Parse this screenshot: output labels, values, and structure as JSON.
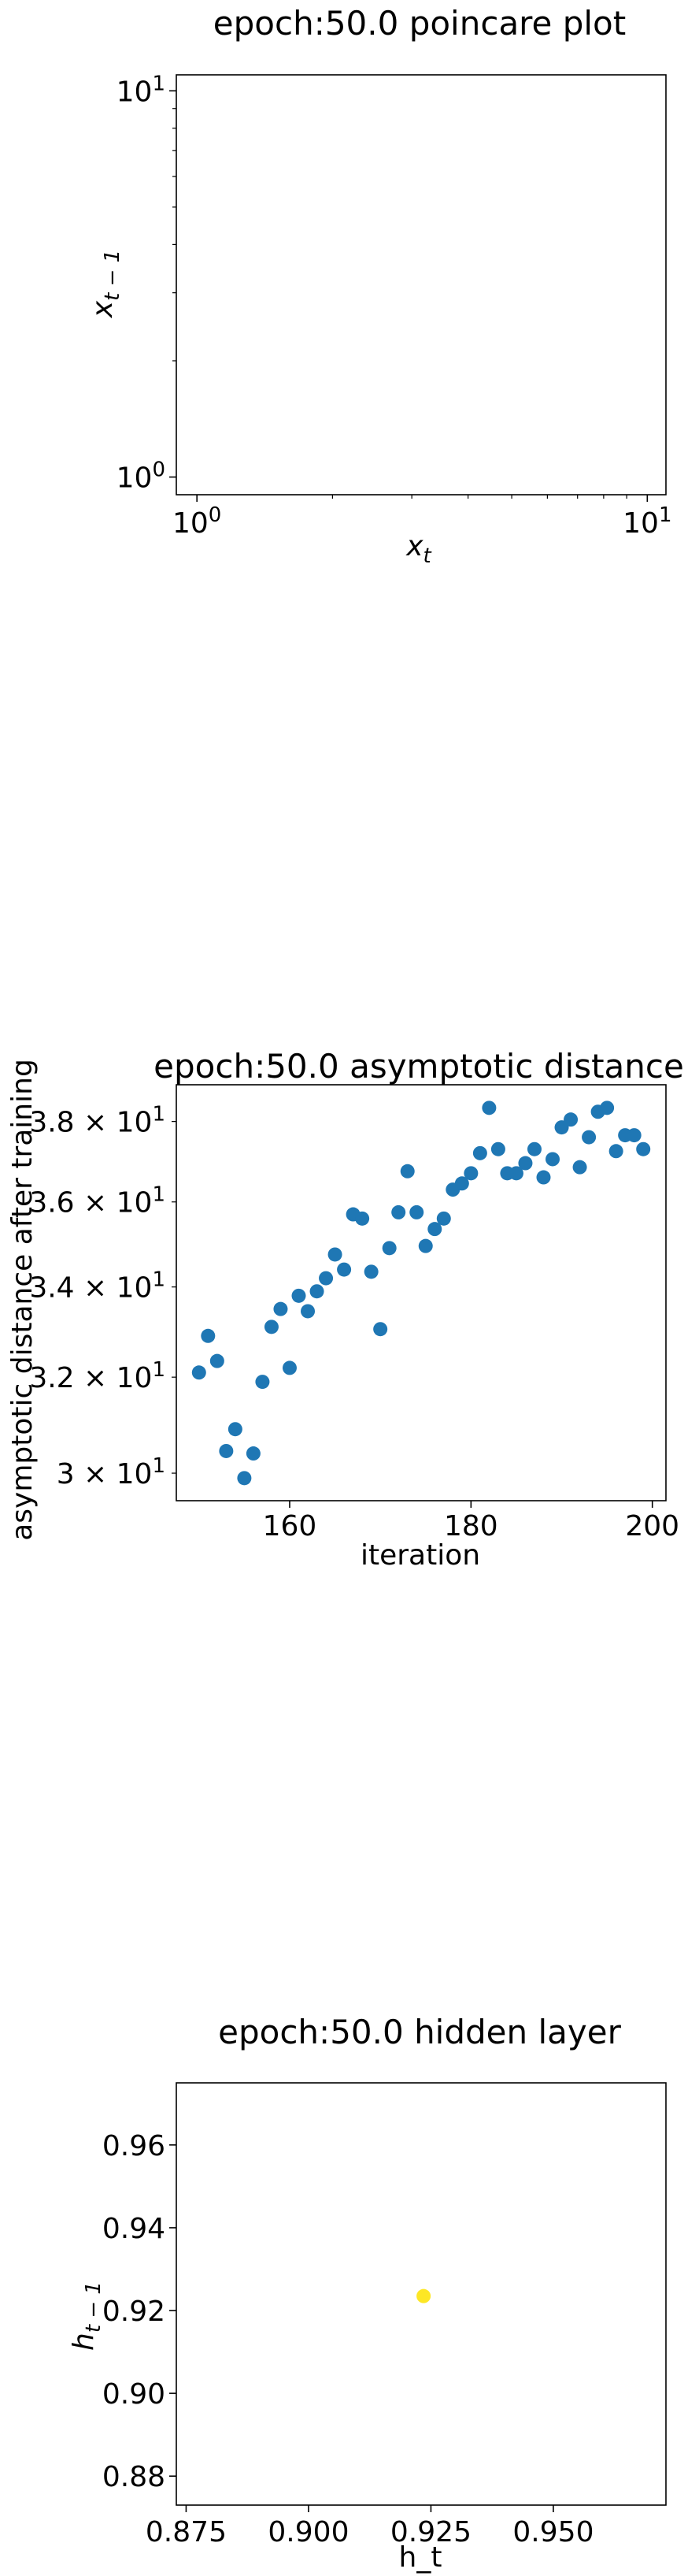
{
  "charts": [
    {
      "title": "epoch:50.0 poincare plot",
      "xlabel": "x_t",
      "ylabel": "x_{t-1}",
      "xticks": [
        "10^0",
        "10^1"
      ],
      "yticks": [
        "10^0",
        "10^1"
      ]
    },
    {
      "title": "epoch:50.0 asymptotic distance",
      "xlabel": "iteration",
      "ylabel": "asymptotic distance after training",
      "xticks": [
        "160",
        "180",
        "200"
      ],
      "yticks": [
        "3 × 10^1",
        "3.2 × 10^1",
        "3.4 × 10^1",
        "3.6 × 10^1",
        "3.8 × 10^1"
      ]
    },
    {
      "title": "epoch:50.0 hidden layer",
      "xlabel": "h_t",
      "ylabel": "h_{t-1}",
      "xticks": [
        "0.875",
        "0.900",
        "0.925",
        "0.950"
      ],
      "yticks": [
        "0.88",
        "0.90",
        "0.92",
        "0.94",
        "0.96"
      ]
    }
  ],
  "chart_data": [
    {
      "type": "scatter",
      "title": "epoch:50.0 poincare plot",
      "xlabel": "x_t",
      "ylabel": "x_{t-1}",
      "xscale": "log",
      "yscale": "log",
      "xlim": [
        0.9,
        11
      ],
      "ylim": [
        0.9,
        11
      ],
      "x": [],
      "y": []
    },
    {
      "type": "scatter",
      "title": "epoch:50.0 asymptotic distance",
      "xlabel": "iteration",
      "ylabel": "asymptotic distance after training",
      "yscale": "log",
      "xlim": [
        147.5,
        201.5
      ],
      "ylim": [
        29.45,
        38.95
      ],
      "color": "#1f77b4",
      "x": [
        150,
        151,
        152,
        153,
        154,
        155,
        156,
        157,
        158,
        159,
        160,
        161,
        162,
        163,
        164,
        165,
        166,
        167,
        168,
        169,
        170,
        171,
        172,
        173,
        174,
        175,
        176,
        177,
        178,
        179,
        180,
        181,
        182,
        183,
        184,
        185,
        186,
        187,
        188,
        189,
        190,
        191,
        192,
        193,
        194,
        195,
        196,
        197,
        198,
        199
      ],
      "y": [
        32.1,
        32.9,
        32.35,
        30.45,
        30.9,
        29.9,
        30.4,
        31.9,
        33.1,
        33.5,
        32.2,
        33.8,
        33.45,
        33.9,
        34.2,
        34.75,
        34.4,
        35.7,
        35.6,
        34.35,
        33.05,
        34.9,
        35.75,
        36.75,
        35.75,
        34.95,
        35.35,
        35.6,
        36.3,
        36.45,
        36.7,
        37.2,
        38.35,
        37.3,
        36.7,
        36.7,
        36.95,
        37.3,
        36.6,
        37.05,
        37.85,
        38.05,
        36.85,
        37.6,
        38.25,
        38.35,
        37.25,
        37.65,
        37.65,
        37.3
      ]
    },
    {
      "type": "scatter",
      "title": "epoch:50.0 hidden layer",
      "xlabel": "h_t",
      "ylabel": "h_{t-1}",
      "xlim": [
        0.873,
        0.973
      ],
      "ylim": [
        0.873,
        0.975
      ],
      "color": "#fde725",
      "x": [
        0.9235
      ],
      "y": [
        0.9235
      ]
    }
  ]
}
